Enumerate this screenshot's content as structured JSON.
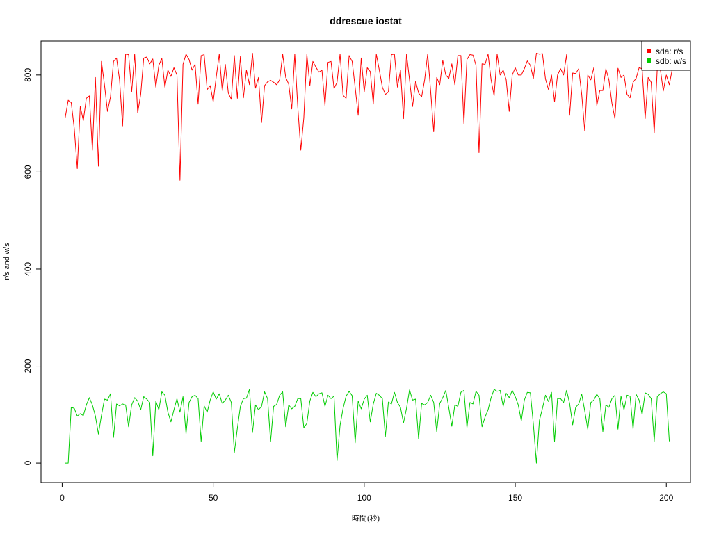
{
  "chart_data": {
    "type": "line",
    "title": "ddrescue iostat",
    "xlabel": "時間(秒)",
    "ylabel": "r/s and w/s",
    "xlim": [
      -7,
      208
    ],
    "ylim": [
      -40,
      870
    ],
    "xticks": [
      0,
      50,
      100,
      150,
      200
    ],
    "yticks": [
      0,
      200,
      400,
      600,
      800
    ],
    "grid": false,
    "legend_position": "top-right",
    "series": [
      {
        "name": "sda: r/s",
        "color": "#ff0000",
        "x_start": 1,
        "values": [
          712,
          748,
          743,
          690,
          607,
          735,
          706,
          752,
          757,
          645,
          795,
          612,
          828,
          780,
          725,
          755,
          828,
          835,
          790,
          695,
          843,
          842,
          765,
          843,
          722,
          760,
          835,
          837,
          823,
          833,
          775,
          820,
          834,
          775,
          810,
          797,
          815,
          800,
          583,
          822,
          843,
          832,
          810,
          822,
          740,
          840,
          842,
          770,
          778,
          745,
          796,
          843,
          767,
          822,
          763,
          750,
          840,
          752,
          838,
          753,
          810,
          780,
          845,
          773,
          795,
          702,
          778,
          786,
          789,
          785,
          780,
          790,
          843,
          795,
          781,
          730,
          843,
          734,
          645,
          712,
          843,
          778,
          828,
          816,
          806,
          810,
          737,
          826,
          828,
          772,
          785,
          843,
          758,
          752,
          840,
          828,
          774,
          717,
          835,
          765,
          815,
          807,
          740,
          843,
          810,
          775,
          760,
          765,
          842,
          843,
          775,
          810,
          710,
          843,
          790,
          735,
          787,
          763,
          755,
          790,
          843,
          766,
          683,
          795,
          780,
          830,
          800,
          793,
          823,
          780,
          840,
          840,
          700,
          832,
          842,
          841,
          820,
          640,
          823,
          822,
          843,
          790,
          757,
          843,
          800,
          810,
          790,
          725,
          800,
          815,
          800,
          800,
          813,
          829,
          820,
          793,
          845,
          843,
          844,
          792,
          770,
          800,
          745,
          800,
          813,
          800,
          842,
          717,
          804,
          803,
          813,
          760,
          685,
          800,
          790,
          815,
          737,
          768,
          768,
          813,
          790,
          742,
          710,
          814,
          795,
          800,
          760,
          753,
          785,
          793,
          815,
          813,
          710,
          795,
          785,
          680,
          813,
          813,
          767,
          800,
          780,
          813
        ]
      },
      {
        "name": "sdb: w/s",
        "color": "#00cc00",
        "x_start": 1,
        "values": [
          0,
          0,
          115,
          113,
          97,
          102,
          98,
          120,
          135,
          120,
          97,
          60,
          98,
          132,
          130,
          143,
          53,
          122,
          118,
          122,
          120,
          75,
          120,
          135,
          128,
          110,
          137,
          132,
          125,
          15,
          128,
          110,
          147,
          140,
          105,
          85,
          110,
          133,
          105,
          137,
          60,
          125,
          137,
          140,
          133,
          45,
          118,
          105,
          130,
          147,
          132,
          143,
          123,
          130,
          140,
          125,
          22,
          72,
          117,
          133,
          134,
          152,
          63,
          120,
          110,
          117,
          147,
          133,
          45,
          117,
          121,
          140,
          147,
          75,
          120,
          112,
          117,
          133,
          133,
          73,
          82,
          128,
          146,
          137,
          143,
          145,
          117,
          140,
          133,
          138,
          5,
          78,
          113,
          138,
          148,
          139,
          42,
          128,
          112,
          132,
          140,
          85,
          122,
          144,
          140,
          133,
          55,
          126,
          122,
          146,
          125,
          115,
          83,
          113,
          151,
          130,
          132,
          50,
          123,
          120,
          125,
          140,
          125,
          65,
          123,
          135,
          150,
          114,
          76,
          120,
          117,
          146,
          150,
          73,
          125,
          122,
          148,
          140,
          75,
          95,
          110,
          135,
          152,
          148,
          150,
          117,
          144,
          135,
          150,
          137,
          120,
          87,
          130,
          146,
          145,
          80,
          0,
          88,
          113,
          140,
          127,
          146,
          45,
          133,
          133,
          125,
          150,
          123,
          79,
          115,
          122,
          142,
          108,
          70,
          125,
          130,
          142,
          133,
          65,
          120,
          115,
          133,
          140,
          70,
          138,
          110,
          140,
          138,
          70,
          142,
          130,
          100,
          145,
          142,
          133,
          45,
          137,
          143,
          147,
          143,
          45
        ]
      }
    ]
  }
}
